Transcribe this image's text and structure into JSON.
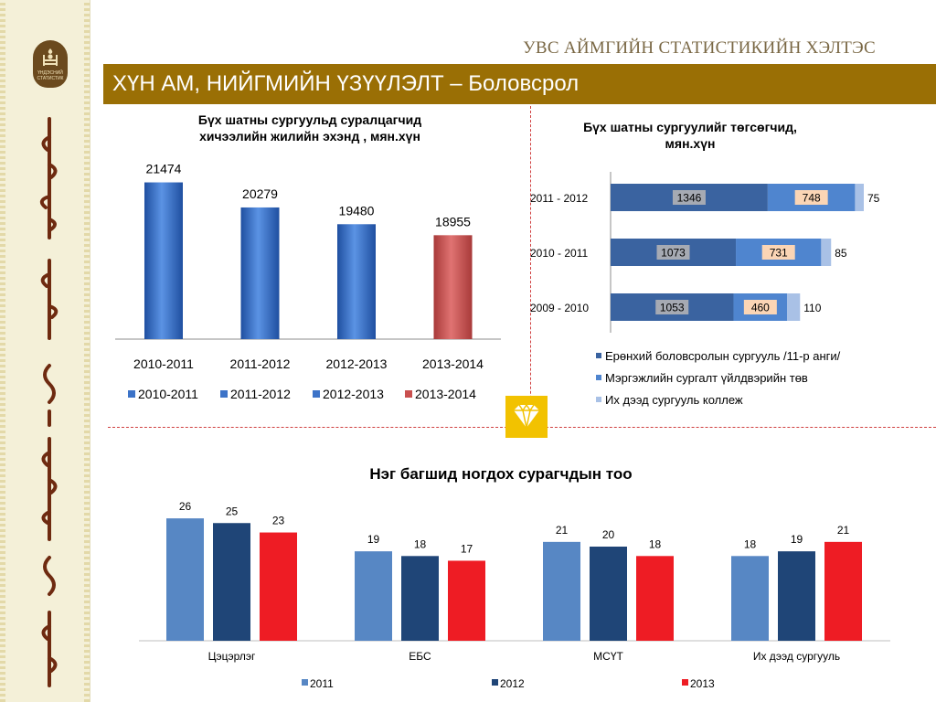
{
  "header": {
    "org_title": "УВС АЙМГИЙН СТАТИСТИКИЙН ХЭЛТЭС",
    "banner_title": "ХҮН АМ, НИЙГМИЙН ҮЗҮҮЛЭЛТ – Боловсрол"
  },
  "logo": {
    "caption": [
      "ҮНДЭСНИЙ",
      "СТАТИСТИК"
    ],
    "icon": "soyombo-emblem-icon"
  },
  "colors": {
    "banner": "#9a6f05",
    "blue_bar": "#3c73c8",
    "red_bar": "#c9504f",
    "general_school": "#3a63a0",
    "vocational": "#4f85cf",
    "college": "#a9c1e6",
    "s2011": "#5787c4",
    "s2012": "#1f4577",
    "s2013": "#ee1c24"
  },
  "chart_data": [
    {
      "type": "bar",
      "title_lines": [
        "Бүх шатны сургуульд суралцагчид",
        "хичээлийн жилийн эхэнд , мян.хүн"
      ],
      "categories": [
        "2010-2011",
        "2011-2012",
        "2012-2013",
        "2013-2014"
      ],
      "values": [
        21474,
        20279,
        19480,
        18955
      ],
      "legend": [
        "2010-2011",
        "2011-2012",
        "2012-2013",
        "2013-2014"
      ],
      "legend_position": "bottom",
      "ylim": [
        14000,
        22500
      ]
    },
    {
      "type": "bar",
      "orientation": "horizontal",
      "stacked": true,
      "title_lines": [
        "Бүх шатны сургуулийг төгсөгчид,",
        "мян.хүн"
      ],
      "categories": [
        "2011 - 2012",
        "2010 - 2011",
        "2009 - 2010"
      ],
      "series": [
        {
          "name": "Ерөнхий боловсролын сургууль /11-р анги/",
          "values": [
            1346,
            1073,
            1053
          ]
        },
        {
          "name": "Мэргэжлийн сургалт үйлдвэрийн төв",
          "values": [
            748,
            731,
            460
          ]
        },
        {
          "name": "Их дээд сургууль коллеж",
          "values": [
            75,
            85,
            110
          ]
        }
      ],
      "legend_position": "bottom"
    },
    {
      "type": "bar",
      "title": "Нэг багшид ногдох сурагчдын тоо",
      "categories": [
        "Цэцэрлэг",
        "ЕБС",
        "МСҮТ",
        "Их дээд сургууль"
      ],
      "series": [
        {
          "name": "2011",
          "values": [
            26,
            19,
            21,
            18
          ]
        },
        {
          "name": "2012",
          "values": [
            25,
            18,
            20,
            19
          ]
        },
        {
          "name": "2013",
          "values": [
            23,
            17,
            18,
            21
          ]
        }
      ],
      "legend_position": "bottom",
      "ylim": [
        0,
        27
      ]
    }
  ]
}
